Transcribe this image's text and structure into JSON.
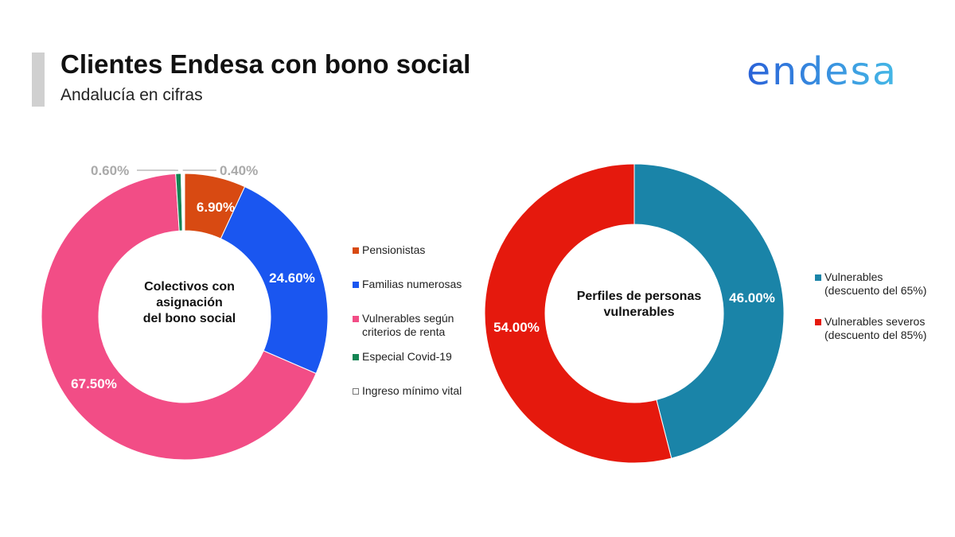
{
  "header": {
    "title": "Clientes Endesa con bono social",
    "subtitle": "Andalucía en cifras",
    "accent_color": "#d0d0d0"
  },
  "logo": {
    "text": "endesa",
    "colors": [
      "#2a62d8",
      "#45b9e6"
    ]
  },
  "chart_data": [
    {
      "type": "pie",
      "variant": "donut",
      "center_label": [
        "Colectivos con",
        "asignación",
        "del bono social"
      ],
      "series": [
        {
          "name": "Pensionistas",
          "value": 6.9,
          "label": "6.90%",
          "color": "#d84a12",
          "label_color": "#ffffff"
        },
        {
          "name": "Familias numerosas",
          "value": 24.6,
          "label": "24.60%",
          "color": "#1a56f0",
          "label_color": "#ffffff"
        },
        {
          "name": "Vulnerables según\ncriterios de renta",
          "value": 67.5,
          "label": "67.50%",
          "color": "#f24d86",
          "label_color": "#ffffff"
        },
        {
          "name": "Especial Covid-19",
          "value": 0.6,
          "label": "0.60%",
          "color": "#138553",
          "label_color": "#aaaaaa"
        },
        {
          "name": "Ingreso mínimo vital",
          "value": 0.4,
          "label": "0.40%",
          "color": "#ffffff",
          "label_color": "#aaaaaa"
        }
      ],
      "legend_position": "right"
    },
    {
      "type": "pie",
      "variant": "donut",
      "center_label": [
        "Perfiles de personas",
        "vulnerables"
      ],
      "series": [
        {
          "name": "Vulnerables\n(descuento del 65%)",
          "value": 46.0,
          "label": "46.00%",
          "color": "#1a84a8",
          "label_color": "#ffffff"
        },
        {
          "name": "Vulnerables severos\n(descuento del 85%)",
          "value": 54.0,
          "label": "54.00%",
          "color": "#e5190d",
          "label_color": "#ffffff"
        }
      ],
      "legend_position": "right"
    }
  ]
}
